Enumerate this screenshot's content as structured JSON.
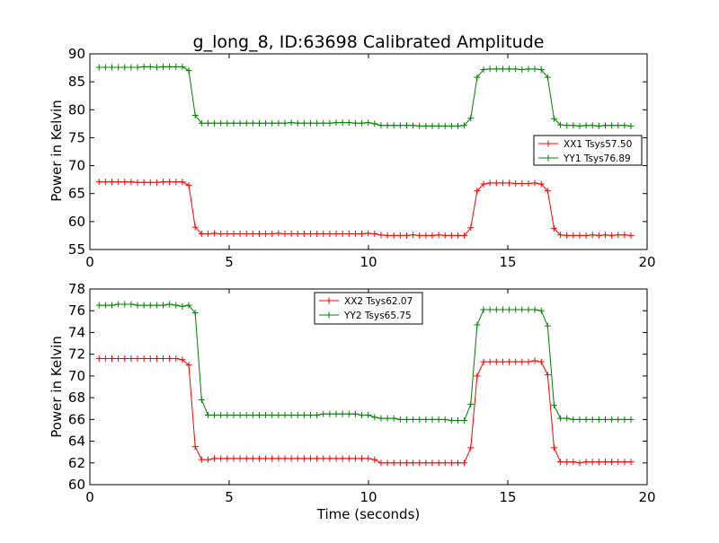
{
  "chart_data": [
    {
      "type": "line",
      "title": "g_long_8, ID:63698 Calibrated Amplitude",
      "xlabel": "",
      "ylabel": "Power in Kelvin",
      "xlim": [
        0,
        20
      ],
      "ylim": [
        55,
        90
      ],
      "xticks": [
        "0",
        "5",
        "10",
        "15",
        "20"
      ],
      "yticks": [
        "55",
        "60",
        "65",
        "70",
        "75",
        "80",
        "85",
        "90"
      ],
      "legend_loc": "center-right",
      "x": [
        0.33,
        0.56,
        0.79,
        1.02,
        1.25,
        1.48,
        1.71,
        1.94,
        2.17,
        2.4,
        2.63,
        2.86,
        3.09,
        3.32,
        3.55,
        3.78,
        4.01,
        4.24,
        4.47,
        4.7,
        4.93,
        5.16,
        5.39,
        5.62,
        5.85,
        6.08,
        6.31,
        6.54,
        6.77,
        7.0,
        7.23,
        7.46,
        7.69,
        7.92,
        8.15,
        8.38,
        8.61,
        8.84,
        9.07,
        9.3,
        9.53,
        9.76,
        9.99,
        10.22,
        10.45,
        10.68,
        10.91,
        11.14,
        11.37,
        11.6,
        11.83,
        12.06,
        12.29,
        12.52,
        12.75,
        12.98,
        13.21,
        13.44,
        13.67,
        13.9,
        14.13,
        14.36,
        14.59,
        14.82,
        15.05,
        15.28,
        15.51,
        15.74,
        15.97,
        16.2,
        16.43,
        16.66,
        16.89,
        17.12,
        17.35,
        17.58,
        17.81,
        18.04,
        18.27,
        18.5,
        18.73,
        18.96,
        19.19,
        19.42
      ],
      "series": [
        {
          "name": "XX1 Tsys57.50",
          "color": "#ff0000",
          "values": [
            67.1,
            67.1,
            67.1,
            67.1,
            67.1,
            67.1,
            67.0,
            67.0,
            67.0,
            67.0,
            67.1,
            67.1,
            67.1,
            67.1,
            66.5,
            59.0,
            57.8,
            57.8,
            57.9,
            57.8,
            57.8,
            57.8,
            57.8,
            57.8,
            57.8,
            57.8,
            57.8,
            57.8,
            57.9,
            57.8,
            57.8,
            57.8,
            57.8,
            57.8,
            57.8,
            57.8,
            57.8,
            57.8,
            57.8,
            57.8,
            57.8,
            57.8,
            57.9,
            57.8,
            57.6,
            57.5,
            57.5,
            57.5,
            57.5,
            57.6,
            57.5,
            57.5,
            57.5,
            57.6,
            57.5,
            57.5,
            57.5,
            57.5,
            58.9,
            65.5,
            66.7,
            66.9,
            66.9,
            66.9,
            66.9,
            66.8,
            66.8,
            66.8,
            66.9,
            66.7,
            65.5,
            58.8,
            57.6,
            57.5,
            57.5,
            57.5,
            57.5,
            57.6,
            57.5,
            57.6,
            57.5,
            57.6,
            57.6,
            57.5
          ]
        },
        {
          "name": "YY1 Tsys76.89",
          "color": "#008000",
          "values": [
            87.6,
            87.6,
            87.6,
            87.6,
            87.6,
            87.6,
            87.6,
            87.7,
            87.7,
            87.6,
            87.7,
            87.7,
            87.7,
            87.7,
            87.0,
            79.0,
            77.6,
            77.6,
            77.6,
            77.6,
            77.6,
            77.6,
            77.6,
            77.6,
            77.6,
            77.6,
            77.6,
            77.6,
            77.6,
            77.6,
            77.7,
            77.6,
            77.6,
            77.6,
            77.6,
            77.6,
            77.6,
            77.7,
            77.7,
            77.7,
            77.6,
            77.6,
            77.7,
            77.5,
            77.2,
            77.2,
            77.2,
            77.2,
            77.2,
            77.2,
            77.1,
            77.1,
            77.1,
            77.1,
            77.1,
            77.1,
            77.1,
            77.2,
            78.5,
            85.8,
            87.2,
            87.3,
            87.3,
            87.3,
            87.3,
            87.3,
            87.2,
            87.3,
            87.3,
            87.2,
            85.8,
            78.4,
            77.3,
            77.2,
            77.2,
            77.1,
            77.2,
            77.2,
            77.1,
            77.2,
            77.2,
            77.2,
            77.2,
            77.1
          ]
        }
      ]
    },
    {
      "type": "line",
      "title": "",
      "xlabel": "Time (seconds)",
      "ylabel": "Power in Kelvin",
      "xlim": [
        0,
        20
      ],
      "ylim": [
        60,
        78
      ],
      "xticks": [
        "0",
        "5",
        "10",
        "15",
        "20"
      ],
      "yticks": [
        "60",
        "62",
        "64",
        "66",
        "68",
        "70",
        "72",
        "74",
        "76",
        "78"
      ],
      "legend_loc": "upper-center",
      "x": [
        0.33,
        0.56,
        0.79,
        1.02,
        1.25,
        1.48,
        1.71,
        1.94,
        2.17,
        2.4,
        2.63,
        2.86,
        3.09,
        3.32,
        3.55,
        3.78,
        4.01,
        4.24,
        4.47,
        4.7,
        4.93,
        5.16,
        5.39,
        5.62,
        5.85,
        6.08,
        6.31,
        6.54,
        6.77,
        7.0,
        7.23,
        7.46,
        7.69,
        7.92,
        8.15,
        8.38,
        8.61,
        8.84,
        9.07,
        9.3,
        9.53,
        9.76,
        9.99,
        10.22,
        10.45,
        10.68,
        10.91,
        11.14,
        11.37,
        11.6,
        11.83,
        12.06,
        12.29,
        12.52,
        12.75,
        12.98,
        13.21,
        13.44,
        13.67,
        13.9,
        14.13,
        14.36,
        14.59,
        14.82,
        15.05,
        15.28,
        15.51,
        15.74,
        15.97,
        16.2,
        16.43,
        16.66,
        16.89,
        17.12,
        17.35,
        17.58,
        17.81,
        18.04,
        18.27,
        18.5,
        18.73,
        18.96,
        19.19,
        19.42
      ],
      "series": [
        {
          "name": "XX2 Tsys62.07",
          "color": "#ff0000",
          "values": [
            71.6,
            71.6,
            71.6,
            71.6,
            71.6,
            71.6,
            71.6,
            71.6,
            71.6,
            71.6,
            71.6,
            71.6,
            71.6,
            71.5,
            71.0,
            63.5,
            62.3,
            62.3,
            62.4,
            62.4,
            62.4,
            62.4,
            62.4,
            62.4,
            62.4,
            62.4,
            62.4,
            62.4,
            62.4,
            62.4,
            62.4,
            62.4,
            62.4,
            62.4,
            62.4,
            62.4,
            62.4,
            62.4,
            62.4,
            62.4,
            62.4,
            62.4,
            62.4,
            62.3,
            62.0,
            62.0,
            62.0,
            62.0,
            62.0,
            62.0,
            62.0,
            62.0,
            62.0,
            62.0,
            62.0,
            62.0,
            62.0,
            62.0,
            63.4,
            70.0,
            71.3,
            71.3,
            71.3,
            71.3,
            71.3,
            71.3,
            71.3,
            71.3,
            71.4,
            71.3,
            70.1,
            63.4,
            62.1,
            62.1,
            62.1,
            62.0,
            62.1,
            62.1,
            62.1,
            62.1,
            62.1,
            62.1,
            62.1,
            62.1
          ]
        },
        {
          "name": "YY2 Tsys65.75",
          "color": "#008000",
          "values": [
            76.5,
            76.5,
            76.5,
            76.6,
            76.6,
            76.6,
            76.5,
            76.5,
            76.5,
            76.5,
            76.5,
            76.6,
            76.5,
            76.4,
            76.5,
            75.8,
            67.8,
            66.4,
            66.4,
            66.4,
            66.4,
            66.4,
            66.4,
            66.4,
            66.4,
            66.4,
            66.4,
            66.4,
            66.4,
            66.4,
            66.4,
            66.4,
            66.4,
            66.4,
            66.4,
            66.5,
            66.5,
            66.5,
            66.5,
            66.5,
            66.5,
            66.4,
            66.4,
            66.2,
            66.1,
            66.1,
            66.1,
            66.0,
            66.0,
            66.0,
            66.0,
            66.0,
            66.0,
            66.0,
            66.0,
            65.9,
            65.9,
            65.9,
            67.4,
            74.7,
            76.1,
            76.1,
            76.1,
            76.1,
            76.1,
            76.1,
            76.1,
            76.1,
            76.1,
            76.0,
            74.6,
            67.3,
            66.1,
            66.1,
            66.0,
            66.0,
            66.0,
            66.0,
            66.0,
            66.0,
            66.0,
            66.0,
            66.0,
            66.0
          ]
        }
      ]
    }
  ]
}
